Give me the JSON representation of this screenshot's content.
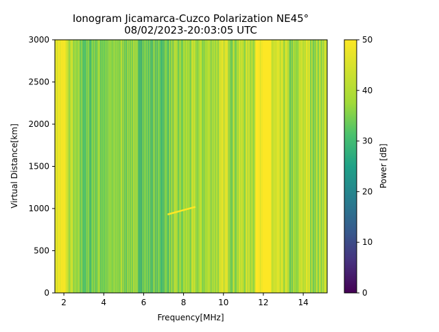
{
  "chart_data": {
    "type": "heatmap",
    "title_line1": "Ionogram Jicamarca-Cuzco Polarization NE45°",
    "title_line2": "08/02/2023-20:03:05 UTC",
    "xlabel": "Frequency[MHz]",
    "ylabel": "Virtual Distance[km]",
    "xlim": [
      1.55,
      15.2
    ],
    "ylim": [
      0,
      3000
    ],
    "x_ticks": [
      2,
      4,
      6,
      8,
      10,
      12,
      14
    ],
    "y_ticks": [
      0,
      500,
      1000,
      1500,
      2000,
      2500,
      3000
    ],
    "colorbar": {
      "label": "Power [dB]",
      "range": [
        0,
        50
      ],
      "ticks": [
        0,
        10,
        20,
        30,
        40,
        50
      ],
      "colormap": "viridis"
    },
    "bands": [
      {
        "x": [
          1.55,
          2.15
        ],
        "power": 48
      },
      {
        "x": [
          2.15,
          2.5
        ],
        "power": 40
      },
      {
        "x": [
          2.5,
          3.0
        ],
        "power": 35
      },
      {
        "x": [
          3.0,
          3.4
        ],
        "power": 33
      },
      {
        "x": [
          3.4,
          4.0
        ],
        "power": 36
      },
      {
        "x": [
          4.0,
          4.6
        ],
        "power": 35
      },
      {
        "x": [
          4.6,
          5.5
        ],
        "power": 37
      },
      {
        "x": [
          5.5,
          6.3
        ],
        "power": 34
      },
      {
        "x": [
          6.3,
          7.2
        ],
        "power": 33
      },
      {
        "x": [
          7.2,
          8.0
        ],
        "power": 36
      },
      {
        "x": [
          8.0,
          9.2
        ],
        "power": 38
      },
      {
        "x": [
          9.2,
          9.9
        ],
        "power": 40
      },
      {
        "x": [
          9.9,
          10.3
        ],
        "power": 44
      },
      {
        "x": [
          10.3,
          10.7
        ],
        "power": 39
      },
      {
        "x": [
          10.7,
          11.1
        ],
        "power": 41
      },
      {
        "x": [
          11.1,
          11.6
        ],
        "power": 42
      },
      {
        "x": [
          11.6,
          12.4
        ],
        "power": 50
      },
      {
        "x": [
          12.4,
          13.2
        ],
        "power": 42
      },
      {
        "x": [
          13.2,
          13.8
        ],
        "power": 36
      },
      {
        "x": [
          13.8,
          14.3
        ],
        "power": 43
      },
      {
        "x": [
          14.3,
          14.9
        ],
        "power": 39
      },
      {
        "x": [
          14.9,
          15.2
        ],
        "power": 42
      }
    ],
    "trace": {
      "x": [
        7.2,
        8.6
      ],
      "y": [
        930,
        1020
      ],
      "power": 50
    }
  }
}
